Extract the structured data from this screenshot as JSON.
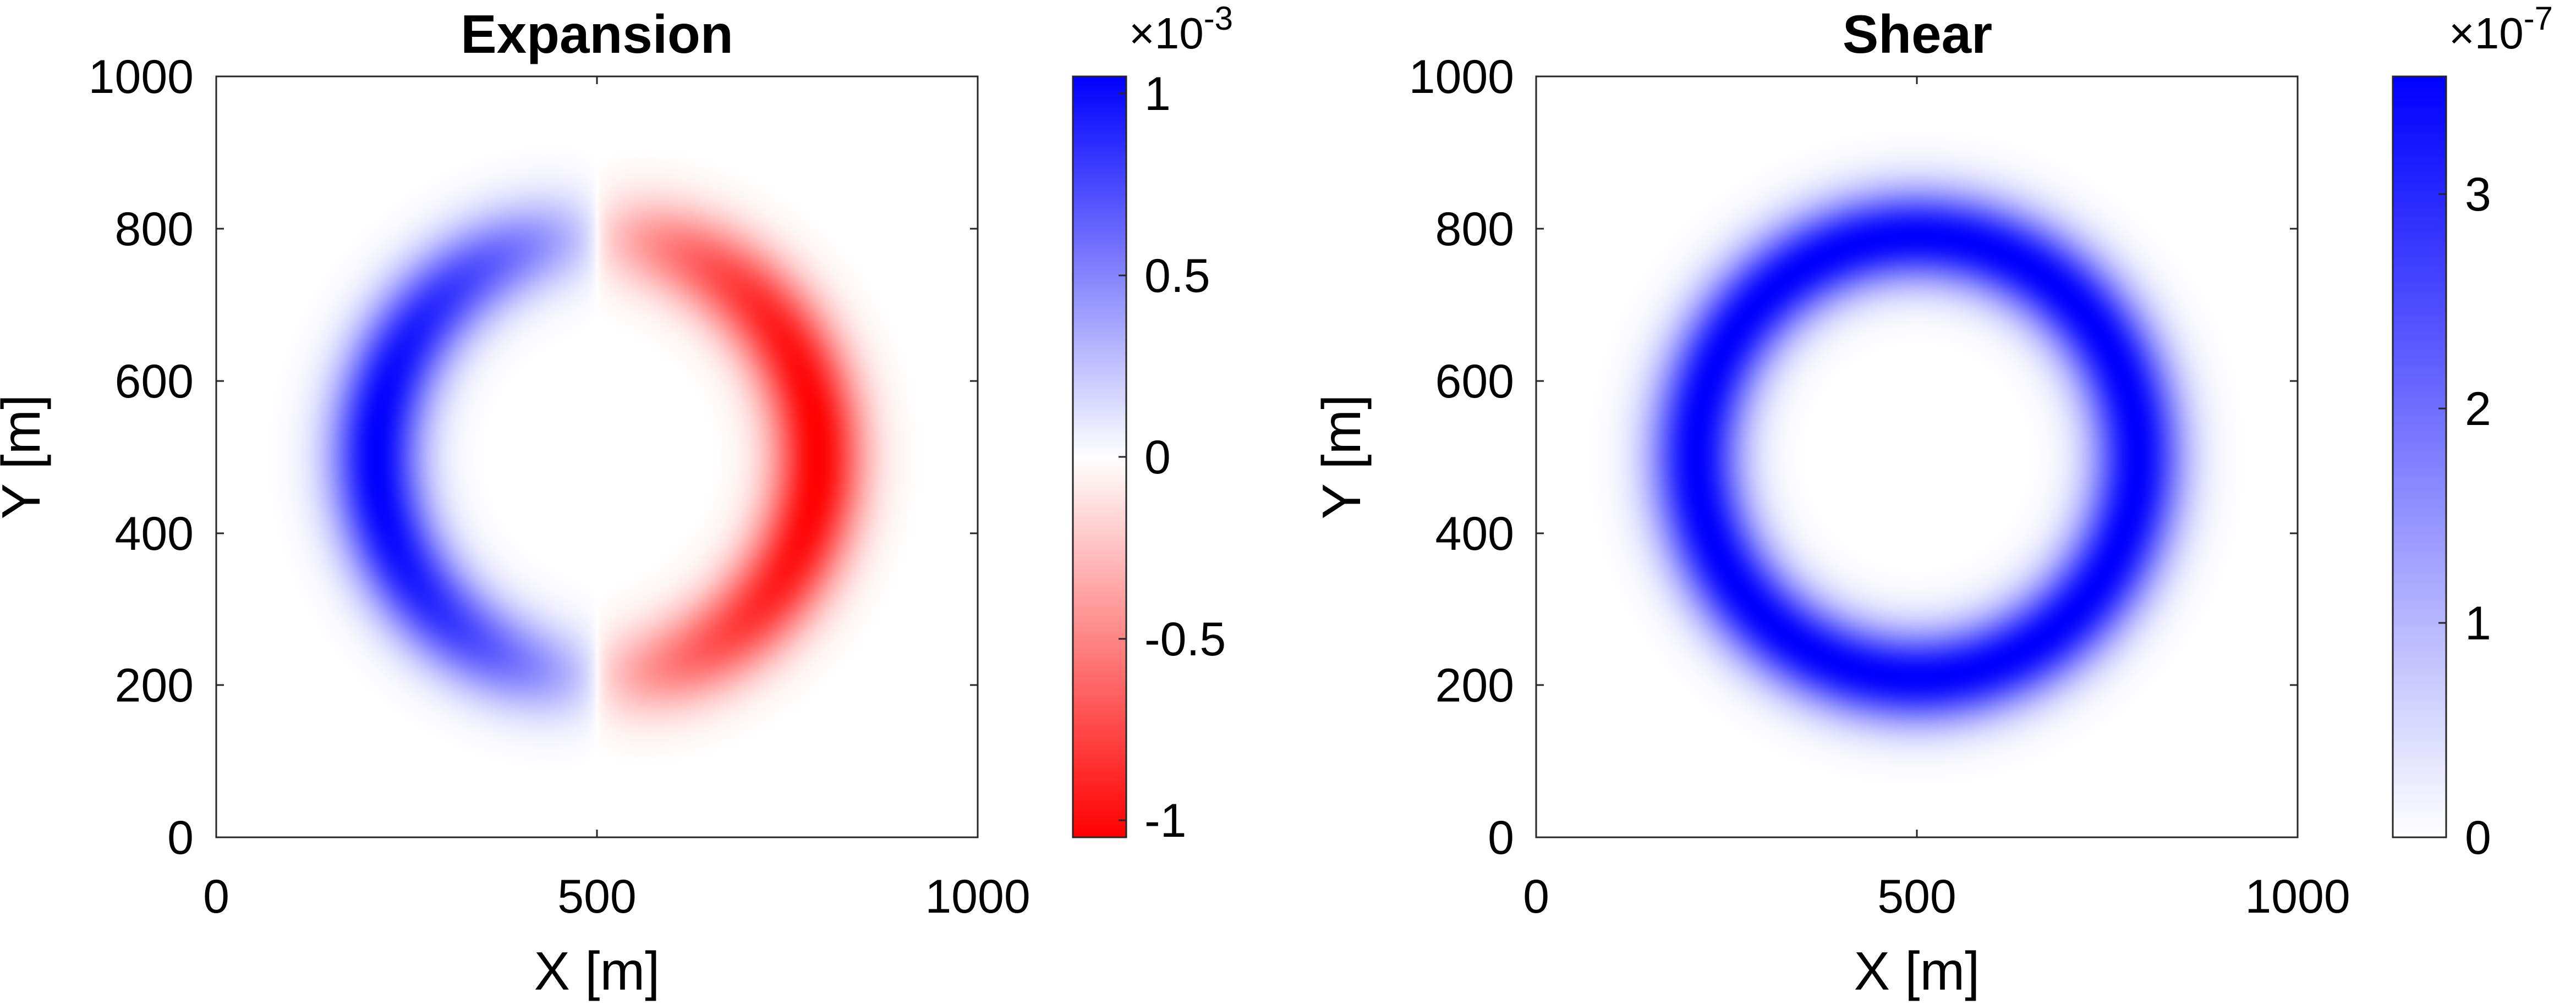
{
  "chart_data": [
    {
      "type": "heatmap",
      "title": "Expansion",
      "xlabel": "X [m]",
      "ylabel": "Y [m]",
      "xlim": [
        0,
        1000
      ],
      "ylim": [
        0,
        1000
      ],
      "x_ticks": [
        0,
        500,
        1000
      ],
      "y_ticks": [
        0,
        200,
        400,
        600,
        800,
        1000
      ],
      "x_tick_labels": [
        "0",
        "500",
        "1000"
      ],
      "y_tick_labels": [
        "0",
        "200",
        "400",
        "600",
        "800",
        "1000"
      ],
      "field": {
        "description": "anti-symmetric crescent pattern: positive (blue) on left, negative (red) on right, zero along x=500",
        "center": [
          500,
          500
        ],
        "ring_radius": 290,
        "ring_width": 60,
        "amplitude": 1.0
      },
      "colorbar": {
        "clim": [
          -1,
          1
        ],
        "colormap": "red-white-blue",
        "exponent_label_base": "×10",
        "exponent_label_power": "-3",
        "ticks": [
          1,
          0.5,
          0,
          -0.5,
          -1
        ],
        "tick_labels": [
          "1",
          "0.5",
          "0",
          "-0.5",
          "-1"
        ]
      },
      "colors": {
        "positive": "#0000ff",
        "negative": "#ff0000",
        "zero": "#ffffff"
      }
    },
    {
      "type": "heatmap",
      "title": "Shear",
      "xlabel": "X [m]",
      "ylabel": "Y [m]",
      "xlim": [
        0,
        1000
      ],
      "ylim": [
        0,
        1000
      ],
      "x_ticks": [
        0,
        500,
        1000
      ],
      "y_ticks": [
        0,
        200,
        400,
        600,
        800,
        1000
      ],
      "x_tick_labels": [
        "0",
        "500",
        "1000"
      ],
      "y_tick_labels": [
        "0",
        "200",
        "400",
        "600",
        "800",
        "1000"
      ],
      "field": {
        "description": "annular ring of positive values centered at (500,500)",
        "center": [
          500,
          500
        ],
        "ring_radius": 290,
        "ring_width": 60,
        "amplitude": 3.5
      },
      "colorbar": {
        "clim": [
          0,
          3.5
        ],
        "colormap": "white-blue",
        "exponent_label_base": "×10",
        "exponent_label_power": "-7",
        "ticks": [
          3,
          2,
          1,
          0
        ],
        "tick_labels": [
          "3",
          "2",
          "1",
          "0"
        ]
      },
      "colors": {
        "positive": "#0000ff",
        "zero": "#ffffff"
      }
    }
  ]
}
